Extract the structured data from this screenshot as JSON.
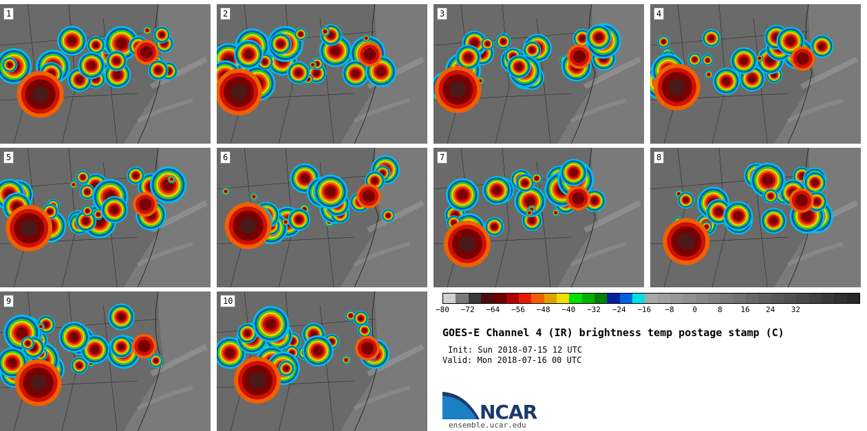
{
  "panels": [
    "1",
    "2",
    "3",
    "4",
    "5",
    "6",
    "7",
    "8",
    "9",
    "10"
  ],
  "colorbar": {
    "colors": [
      "#d0d0d0",
      "#7a7a7a",
      "#3a3a3a",
      "#4a1010",
      "#6e0000",
      "#b00000",
      "#e51a00",
      "#f06000",
      "#e0a000",
      "#f0e000",
      "#00e000",
      "#00b000",
      "#008000",
      "#0020a0",
      "#0060e0",
      "#00e0e0",
      "#a8a8a8",
      "#a0a0a0",
      "#989898",
      "#909090",
      "#888888",
      "#808080",
      "#787878",
      "#707070",
      "#686868",
      "#606060",
      "#585858",
      "#505050",
      "#484848",
      "#404040",
      "#383838",
      "#303030",
      "#282828"
    ],
    "ticks": [
      "−80",
      "−72",
      "−64",
      "−56",
      "−48",
      "−40",
      "−32",
      "−24",
      "−16",
      "−8",
      "0",
      "8",
      "16",
      "24",
      "32"
    ]
  },
  "title": "GOES-E Channel 4 (IR) brightness temp postage stamp (C)",
  "init": "Init: Sun 2018-07-15 12 UTC",
  "valid": "Valid: Mon 2018-07-16 00 UTC",
  "logo_text": "NCAR",
  "site": "ensemble.ucar.edu"
}
